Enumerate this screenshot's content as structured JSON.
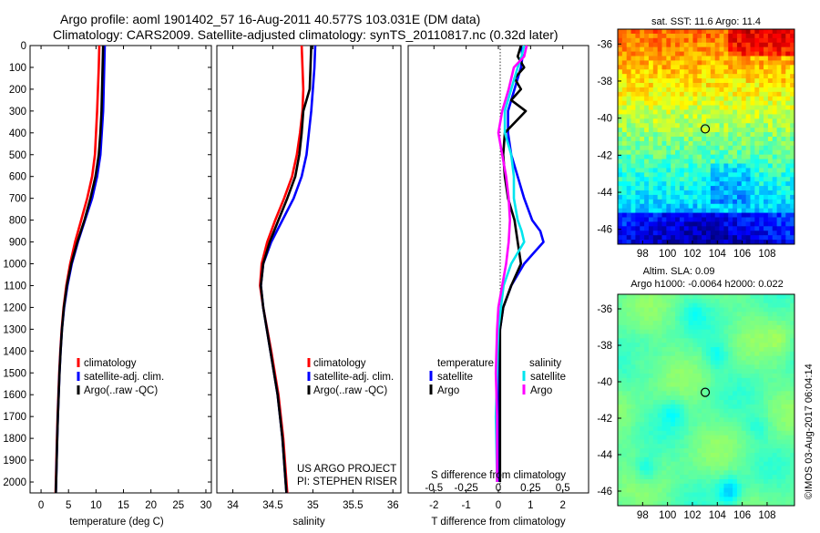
{
  "titles": {
    "line1": "Argo profile: aoml 1901402_57 16-Aug-2011 40.577S 103.031E (DM data)",
    "line2": "Climatology: CARS2009. Satellite-adjusted climatology: synTS_20110817.nc (0.32d later)"
  },
  "colors": {
    "climatology": "#ff0000",
    "satellite": "#0000ff",
    "argo": "#000000",
    "satellite_salinity": "#00e5ee",
    "argo_salinity": "#ff00ff"
  },
  "chart_data": [
    {
      "id": "temperature",
      "type": "line",
      "xlabel": "temperature (deg C)",
      "ylabel": "depth",
      "xlim": [
        -2,
        31
      ],
      "ylim": [
        2050,
        0
      ],
      "xticks": [
        "0",
        "5",
        "10",
        "15",
        "20",
        "25",
        "30"
      ],
      "yticks": [
        "0",
        "100",
        "200",
        "300",
        "400",
        "500",
        "600",
        "700",
        "800",
        "900",
        "1000",
        "1100",
        "1200",
        "1300",
        "1400",
        "1500",
        "1600",
        "1700",
        "1800",
        "1900",
        "2000"
      ],
      "legend": [
        "climatology",
        "satellite-adj. clim.",
        "Argo(..raw -QC)"
      ],
      "series": [
        {
          "name": "climatology",
          "depth": [
            0,
            100,
            300,
            500,
            600,
            700,
            800,
            900,
            1000,
            1100,
            1200,
            1300,
            1400,
            1500,
            1600,
            1700,
            1800,
            1900,
            2000,
            2050
          ],
          "values": [
            10.6,
            10.5,
            10.2,
            9.8,
            9.3,
            8.4,
            7.3,
            6.2,
            5.3,
            4.6,
            4.1,
            3.75,
            3.5,
            3.3,
            3.15,
            3.0,
            2.9,
            2.8,
            2.7,
            2.65
          ]
        },
        {
          "name": "satellite-adj. clim.",
          "depth": [
            0,
            100,
            300,
            500,
            600,
            700,
            800,
            900,
            1000,
            1100,
            1200,
            1300,
            1400,
            1500,
            1600,
            1700,
            1800,
            1900,
            2000,
            2050
          ],
          "values": [
            11.6,
            11.5,
            11.3,
            10.8,
            10.2,
            9.3,
            8.0,
            6.7,
            5.6,
            4.8,
            4.2,
            3.8,
            3.55,
            3.35,
            3.2,
            3.05,
            2.95,
            2.85,
            2.75,
            2.7
          ]
        },
        {
          "name": "Argo(..raw -QC)",
          "depth": [
            0,
            100,
            200,
            300,
            400,
            500,
            600,
            700,
            800,
            900,
            1000,
            1100,
            1200,
            1300,
            1400,
            1500,
            1600,
            1700,
            1800,
            1900,
            2000,
            2050
          ],
          "values": [
            11.3,
            11.2,
            11.1,
            11.0,
            10.8,
            10.5,
            9.9,
            9.0,
            7.9,
            6.6,
            5.5,
            4.7,
            4.15,
            3.8,
            3.55,
            3.35,
            3.2,
            3.05,
            2.95,
            2.85,
            2.75,
            2.7
          ]
        }
      ]
    },
    {
      "id": "salinity",
      "type": "line",
      "xlabel": "salinity",
      "xlim": [
        33.8,
        36.1
      ],
      "ylim": [
        2050,
        0
      ],
      "xticks": [
        "34",
        "34.5",
        "35",
        "35.5",
        "36"
      ],
      "legend": [
        "climatology",
        "satellite-adj. clim.",
        "Argo(..raw -QC)"
      ],
      "annotation": [
        "US ARGO PROJECT",
        "PI: STEPHEN RISER"
      ],
      "series": [
        {
          "name": "climatology",
          "depth": [
            0,
            100,
            200,
            300,
            400,
            500,
            600,
            700,
            800,
            900,
            1000,
            1100,
            1200,
            1400,
            1600,
            1800,
            2000,
            2050
          ],
          "values": [
            34.86,
            34.87,
            34.88,
            34.87,
            34.84,
            34.8,
            34.74,
            34.64,
            34.53,
            34.43,
            34.36,
            34.34,
            34.38,
            34.48,
            34.57,
            34.63,
            34.67,
            34.68
          ]
        },
        {
          "name": "satellite-adj. clim.",
          "depth": [
            0,
            100,
            200,
            300,
            400,
            500,
            600,
            700,
            800,
            900,
            1000,
            1100,
            1200,
            1400,
            1600,
            1800,
            2000,
            2050
          ],
          "values": [
            35.03,
            35.02,
            35.0,
            34.98,
            34.95,
            34.92,
            34.86,
            34.76,
            34.62,
            34.48,
            34.38,
            34.35,
            34.38,
            34.47,
            34.56,
            34.62,
            34.66,
            34.67
          ]
        },
        {
          "name": "Argo(..raw -QC)",
          "depth": [
            0,
            100,
            200,
            250,
            300,
            400,
            500,
            600,
            700,
            800,
            900,
            1000,
            1100,
            1200,
            1400,
            1600,
            1800,
            2000,
            2050
          ],
          "values": [
            34.98,
            34.97,
            34.96,
            34.92,
            34.88,
            34.86,
            34.83,
            34.78,
            34.68,
            34.57,
            34.46,
            34.38,
            34.35,
            34.38,
            34.47,
            34.56,
            34.62,
            34.66,
            34.67
          ]
        }
      ]
    },
    {
      "id": "difference",
      "type": "line",
      "xlabel": "T difference from climatology",
      "xlabel2": "S difference from climatology",
      "xlim": [
        -2.8,
        2.8
      ],
      "ylim": [
        2050,
        0
      ],
      "xticks": [
        "-2",
        "-1",
        "0",
        "1",
        "2"
      ],
      "xticks2": [
        "-0.5",
        "-0.25",
        "0",
        "0.25",
        "0.5"
      ],
      "legend_temperature_title": "temperature",
      "legend_salinity_title": "salinity",
      "legend": [
        {
          "label": "satellite",
          "group": "temperature"
        },
        {
          "label": "Argo",
          "group": "temperature"
        },
        {
          "label": "satellite",
          "group": "salinity"
        },
        {
          "label": "Argo",
          "group": "salinity"
        }
      ],
      "series": [
        {
          "name": "T satellite",
          "depth": [
            0,
            50,
            100,
            200,
            300,
            400,
            500,
            600,
            700,
            800,
            850,
            900,
            950,
            1000,
            1100,
            1200,
            1300,
            1500,
            1700,
            2000
          ],
          "values": [
            0.7,
            0.75,
            0.7,
            0.5,
            0.3,
            0.3,
            0.4,
            0.6,
            0.8,
            1.05,
            1.3,
            1.4,
            1.1,
            0.8,
            0.4,
            0.15,
            0.05,
            0.0,
            0.0,
            0.0
          ]
        },
        {
          "name": "T Argo",
          "depth": [
            0,
            50,
            100,
            150,
            200,
            250,
            300,
            400,
            500,
            600,
            700,
            800,
            900,
            1000,
            1100,
            1200,
            1300,
            1500,
            1700,
            2000
          ],
          "values": [
            0.7,
            0.6,
            0.8,
            0.5,
            0.7,
            0.4,
            0.85,
            0.2,
            0.15,
            0.2,
            0.3,
            0.5,
            0.6,
            0.7,
            0.4,
            0.15,
            0.05,
            0.05,
            0.05,
            0.05
          ]
        },
        {
          "name": "S satellite",
          "depth": [
            0,
            50,
            100,
            200,
            300,
            400,
            500,
            600,
            700,
            800,
            850,
            900,
            950,
            1000,
            1100,
            1200,
            1300,
            1500,
            1700,
            2000
          ],
          "values": [
            0.2,
            0.18,
            0.15,
            0.1,
            0.05,
            0.05,
            0.1,
            0.12,
            0.12,
            0.15,
            0.18,
            0.2,
            0.15,
            0.1,
            0.04,
            0.02,
            0.0,
            -0.01,
            -0.02,
            -0.01
          ]
        },
        {
          "name": "S Argo",
          "depth": [
            0,
            50,
            100,
            200,
            300,
            400,
            500,
            600,
            700,
            800,
            900,
            1000,
            1100,
            1200,
            1300,
            1500,
            1700,
            2000
          ],
          "values": [
            0.22,
            0.2,
            0.12,
            0.08,
            0.03,
            0.0,
            0.03,
            0.06,
            0.08,
            0.09,
            0.08,
            0.06,
            0.03,
            0.0,
            -0.01,
            -0.02,
            -0.01,
            -0.01
          ]
        }
      ]
    },
    {
      "id": "sst_map",
      "type": "heatmap",
      "title": "sat. SST: 11.6  Argo: 11.4",
      "xticks": [
        "98",
        "100",
        "102",
        "104",
        "106",
        "108"
      ],
      "yticks": [
        "-36",
        "-38",
        "-40",
        "-42",
        "-44",
        "-46"
      ],
      "xlim": [
        96.0,
        110.2
      ],
      "ylim": [
        -46.8,
        -35.2
      ],
      "marker": {
        "lon": 103.03,
        "lat": -40.58
      }
    },
    {
      "id": "sla_map",
      "type": "heatmap",
      "title": "Altim. SLA: 0.09",
      "subtitle": "Argo h1000: -0.0064 h2000: 0.022",
      "xticks": [
        "98",
        "100",
        "102",
        "104",
        "106",
        "108"
      ],
      "yticks": [
        "-36",
        "-38",
        "-40",
        "-42",
        "-44",
        "-46"
      ],
      "xlim": [
        96.0,
        110.2
      ],
      "ylim": [
        -46.8,
        -35.2
      ],
      "marker": {
        "lon": 103.03,
        "lat": -40.58
      }
    }
  ],
  "watermark": "©IMOS 03-Aug-2017 06:04:14"
}
